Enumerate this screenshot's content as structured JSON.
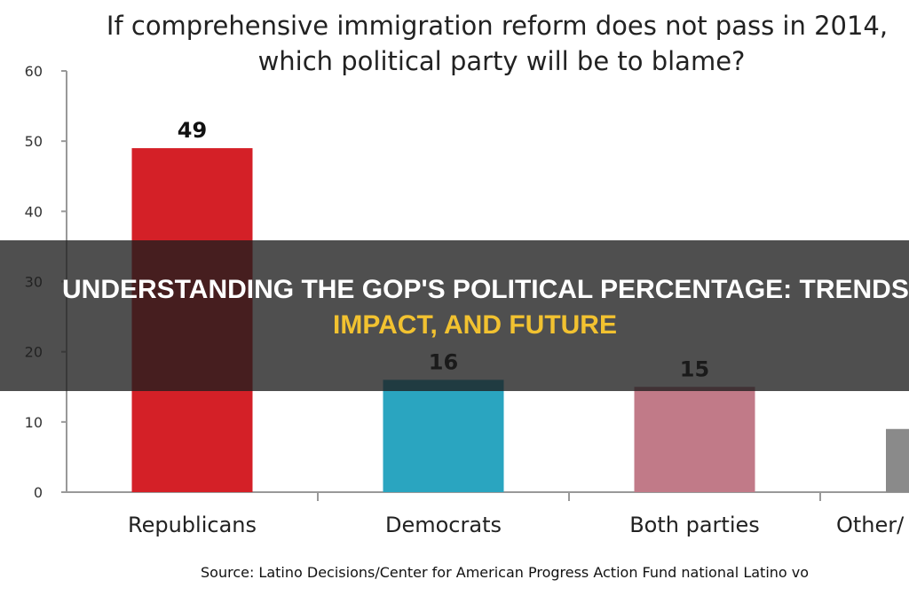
{
  "chart_data": {
    "type": "bar",
    "title": "If comprehensive immigration reform does not pass in 2014 which political party will be to blame?",
    "title_lines": [
      "If comprehensive immigration reform does not pass in 2014,",
      "which political party  will be to blame?"
    ],
    "categories": [
      "Republicans",
      "Democrats",
      "Both parties",
      "Other/"
    ],
    "values": [
      49,
      16,
      15,
      9
    ],
    "data_labels": [
      "49",
      "16",
      "15",
      ""
    ],
    "colors": [
      "#d42027",
      "#2aa5c0",
      "#c17a88",
      "#8a8a8a"
    ],
    "ylim": [
      0,
      60
    ],
    "yticks": [
      "0",
      "10",
      "20",
      "30",
      "40",
      "50",
      "60"
    ],
    "grid": false,
    "source": "Source: Latino Decisions/Center for American Progress Action Fund national Latino vo"
  },
  "banner": {
    "line1": "UNDERSTANDING THE GOP'S POLITICAL PERCENTAGE: TRENDS,",
    "line2": "IMPACT, AND FUTURE"
  }
}
